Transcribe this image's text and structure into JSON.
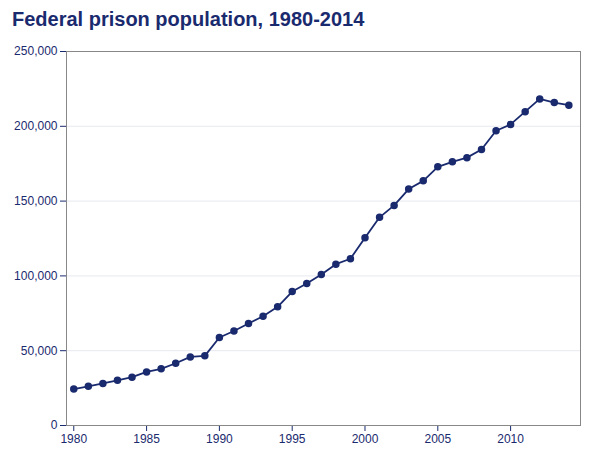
{
  "chart_data": {
    "type": "line",
    "title": "Federal prison population, 1980-2014",
    "x": [
      1980,
      1981,
      1982,
      1983,
      1984,
      1985,
      1986,
      1987,
      1988,
      1989,
      1990,
      1991,
      1992,
      1993,
      1994,
      1995,
      1996,
      1997,
      1998,
      1999,
      2000,
      2001,
      2002,
      2003,
      2004,
      2005,
      2006,
      2007,
      2008,
      2009,
      2010,
      2011,
      2012,
      2013,
      2014
    ],
    "values": [
      24363,
      26195,
      28133,
      30214,
      32317,
      35781,
      37910,
      41609,
      45872,
      46575,
      58838,
      63179,
      68183,
      73058,
      79310,
      89538,
      94910,
      100958,
      107843,
      111480,
      125560,
      139150,
      147126,
      158049,
      163528,
      172940,
      176268,
      179048,
      184485,
      197050,
      201280,
      209771,
      218290,
      215866,
      214149
    ],
    "color": "#1a2a6e",
    "marker": "circle",
    "grid": "y",
    "xlim": [
      1979.5,
      2014.8
    ],
    "xticks": [
      1980,
      1985,
      1990,
      1995,
      2000,
      2005,
      2010
    ],
    "ylim": [
      0,
      250000
    ],
    "yticks": [
      0,
      {
        "value": 50000,
        "label": "50,000"
      },
      {
        "value": 100000,
        "label": "100,000"
      },
      {
        "value": 150000,
        "label": "150,000"
      },
      {
        "value": 200000,
        "label": "200,000"
      },
      {
        "value": 250000,
        "label": "250,000"
      }
    ]
  }
}
